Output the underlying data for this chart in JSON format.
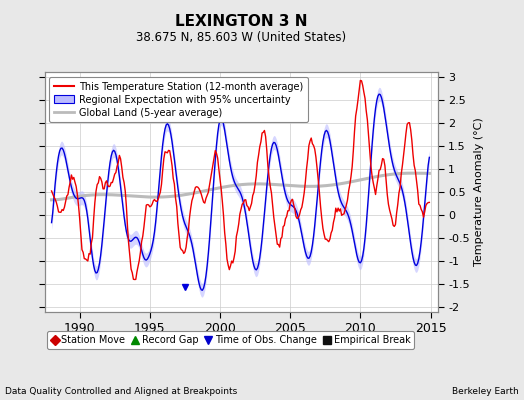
{
  "title": "LEXINGTON 3 N",
  "subtitle": "38.675 N, 85.603 W (United States)",
  "ylabel": "Temperature Anomaly (°C)",
  "footer_left": "Data Quality Controlled and Aligned at Breakpoints",
  "footer_right": "Berkeley Earth",
  "xlim": [
    1987.5,
    2015.5
  ],
  "ylim": [
    -2.1,
    3.1
  ],
  "yticks": [
    -2,
    -1.5,
    -1,
    -0.5,
    0,
    0.5,
    1,
    1.5,
    2,
    2.5,
    3
  ],
  "xticks": [
    1990,
    1995,
    2000,
    2005,
    2010,
    2015
  ],
  "background_color": "#e8e8e8",
  "plot_bg_color": "#ffffff",
  "red_line_color": "#ee0000",
  "blue_line_color": "#0000dd",
  "blue_fill_color": "#bbbbff",
  "gray_line_color": "#bbbbbb",
  "legend_labels": [
    "This Temperature Station (12-month average)",
    "Regional Expectation with 95% uncertainty",
    "Global Land (5-year average)"
  ],
  "marker_legend": [
    {
      "label": "Station Move",
      "color": "#cc0000",
      "marker": "D"
    },
    {
      "label": "Record Gap",
      "color": "#008800",
      "marker": "^"
    },
    {
      "label": "Time of Obs. Change",
      "color": "#0000cc",
      "marker": "v"
    },
    {
      "label": "Empirical Break",
      "color": "#111111",
      "marker": "s"
    }
  ],
  "obs_change_x": 1997.5,
  "obs_change_y": -1.55,
  "figsize": [
    5.24,
    4.0
  ],
  "dpi": 100
}
